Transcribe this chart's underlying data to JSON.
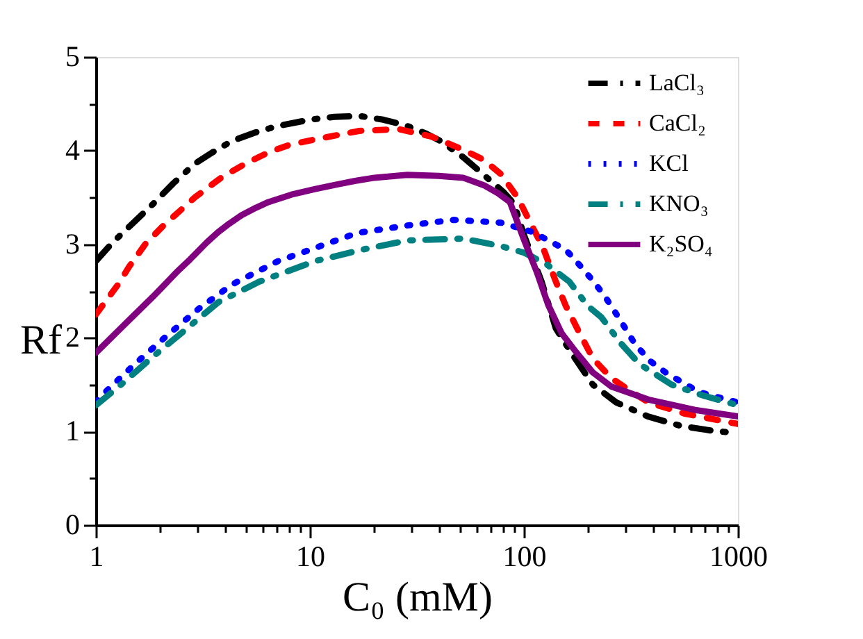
{
  "chart_data": {
    "type": "line",
    "xlabel": "C₀ (mM)",
    "ylabel": "Rf",
    "log": "x",
    "xlim": [
      1,
      1000
    ],
    "ylim": [
      0,
      5
    ],
    "xticks": [
      1,
      {
        "value": 2,
        "label": null
      },
      {
        "value": 3,
        "label": null
      },
      {
        "value": 4,
        "label": null
      },
      {
        "value": 5,
        "label": null
      },
      {
        "value": 6,
        "label": null
      },
      {
        "value": 7,
        "label": null
      },
      {
        "value": 8,
        "label": null
      },
      {
        "value": 9,
        "label": null
      },
      10,
      {
        "value": 20,
        "label": null
      },
      {
        "value": 30,
        "label": null
      },
      {
        "value": 40,
        "label": null
      },
      {
        "value": 50,
        "label": null
      },
      {
        "value": 60,
        "label": null
      },
      {
        "value": 70,
        "label": null
      },
      {
        "value": 80,
        "label": null
      },
      {
        "value": 90,
        "label": null
      },
      100,
      {
        "value": 200,
        "label": null
      },
      {
        "value": 300,
        "label": null
      },
      {
        "value": 400,
        "label": null
      },
      {
        "value": 500,
        "label": null
      },
      {
        "value": 600,
        "label": null
      },
      {
        "value": 700,
        "label": null
      },
      {
        "value": 800,
        "label": null
      },
      {
        "value": 900,
        "label": null
      },
      1000
    ],
    "yticks": [
      0,
      {
        "value": 0.5,
        "label": null
      },
      1,
      {
        "value": 1.5,
        "label": null
      },
      2,
      {
        "value": 2.5,
        "label": null
      },
      3,
      {
        "value": 3.5,
        "label": null
      },
      4,
      {
        "value": 4.5,
        "label": null
      },
      5
    ],
    "legend": "top right",
    "series": [
      {
        "name": "LaCl₃",
        "color": "#000000",
        "line_style": "dashdot",
        "x": [
          1,
          1.2,
          1.45,
          1.85,
          2.3,
          2.9,
          3.5,
          4.3,
          5.5,
          7,
          10,
          13,
          17,
          22,
          28,
          35,
          41,
          52,
          65,
          80,
          90,
          100,
          110,
          121,
          141,
          171,
          210,
          270,
          380,
          540,
          750,
          1000
        ],
        "values": [
          2.82,
          3.02,
          3.2,
          3.43,
          3.65,
          3.86,
          3.98,
          4.1,
          4.19,
          4.26,
          4.33,
          4.36,
          4.37,
          4.33,
          4.27,
          4.18,
          4.1,
          3.93,
          3.74,
          3.56,
          3.43,
          3.1,
          2.85,
          2.6,
          2.1,
          1.8,
          1.5,
          1.31,
          1.16,
          1.06,
          1.01,
          0.98
        ]
      },
      {
        "name": "CaCl₂",
        "color": "#ff0000",
        "line_style": "dashed",
        "x": [
          1,
          1.27,
          1.43,
          1.7,
          2.05,
          2.9,
          3.9,
          5,
          6.4,
          8,
          10.6,
          17,
          26,
          37,
          52,
          65,
          78,
          94,
          107,
          122,
          141,
          157,
          182,
          210,
          256,
          320,
          382,
          565,
          1000
        ],
        "values": [
          2.25,
          2.57,
          2.76,
          3.0,
          3.19,
          3.5,
          3.72,
          3.86,
          3.98,
          4.06,
          4.12,
          4.21,
          4.23,
          4.15,
          4.01,
          3.9,
          3.75,
          3.49,
          3.23,
          2.98,
          2.6,
          2.34,
          2.05,
          1.78,
          1.57,
          1.42,
          1.31,
          1.19,
          1.08
        ]
      },
      {
        "name": "KCl",
        "color": "#0000ff",
        "line_style": "dotted",
        "x": [
          1,
          1.06,
          1.52,
          2.14,
          3.02,
          4.33,
          7.1,
          10,
          16.6,
          28.5,
          47,
          78,
          110,
          157,
          185,
          210,
          238,
          280,
          331,
          390,
          466,
          659,
          1000
        ],
        "values": [
          1.31,
          1.38,
          1.72,
          2.02,
          2.31,
          2.57,
          2.82,
          2.94,
          3.12,
          3.2,
          3.26,
          3.23,
          3.13,
          2.94,
          2.76,
          2.61,
          2.45,
          2.2,
          1.93,
          1.75,
          1.62,
          1.42,
          1.31
        ]
      },
      {
        "name": "KNO₃",
        "color": "#008080",
        "line_style": "dashdot",
        "x": [
          1,
          1.31,
          1.85,
          2.6,
          3.73,
          5.8,
          10.6,
          17.4,
          28.5,
          52,
          78,
          100,
          127,
          163,
          199,
          230,
          284,
          347,
          490,
          697,
          1000
        ],
        "values": [
          1.28,
          1.5,
          1.8,
          2.08,
          2.38,
          2.6,
          2.82,
          2.94,
          3.04,
          3.06,
          2.98,
          2.91,
          2.79,
          2.6,
          2.34,
          2.22,
          1.94,
          1.72,
          1.5,
          1.38,
          1.28
        ]
      },
      {
        "name": "K₂SO₄",
        "color": "#800080",
        "line_style": "solid",
        "x": [
          1,
          1.43,
          1.85,
          2.38,
          2.76,
          3.3,
          3.73,
          4.2,
          4.8,
          5.6,
          6.4,
          8.2,
          10.6,
          13.5,
          16.6,
          20,
          28.5,
          40,
          52,
          65,
          75,
          86,
          100,
          115,
          130,
          150,
          175,
          210,
          256,
          382,
          630,
          1000
        ],
        "values": [
          1.84,
          2.19,
          2.44,
          2.7,
          2.84,
          3.02,
          3.13,
          3.22,
          3.31,
          3.39,
          3.45,
          3.53,
          3.59,
          3.64,
          3.68,
          3.71,
          3.74,
          3.73,
          3.71,
          3.63,
          3.55,
          3.45,
          3.05,
          2.7,
          2.35,
          2.05,
          1.85,
          1.63,
          1.48,
          1.34,
          1.23,
          1.16
        ]
      }
    ]
  }
}
